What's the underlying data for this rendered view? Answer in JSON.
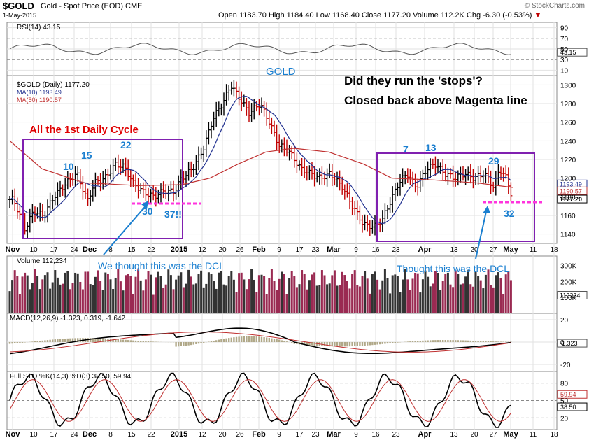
{
  "header": {
    "ticker": "$GOLD",
    "description": "Gold - Spot Price (EOD)",
    "exchange": "CME",
    "date": "1-May-2015",
    "ohlc_text": "Open 1183.70  High 1184.40  Low 1168.40  Close 1177.20  Volume 112.2K  Chg -6.30 (-0.53%)",
    "chg_icon": "down-triangle",
    "logo": "© StockCharts.com"
  },
  "panels": {
    "rsi": {
      "label": "RSI(14) 43.15",
      "value_tag": "43.15",
      "ticks": [
        "90",
        "70",
        "50",
        "30",
        "10"
      ]
    },
    "price": {
      "legend": [
        "$GOLD (Daily) 1177.20",
        "MA(10) 1193.49",
        "MA(50) 1190.57"
      ],
      "tags": [
        "1193.49",
        "1190.57",
        "1177.20"
      ],
      "ticks": [
        "1300",
        "1280",
        "1260",
        "1240",
        "1220",
        "1200",
        "1180",
        "1160",
        "1140"
      ]
    },
    "volume": {
      "label": "Volume 112,234",
      "tag": "112234",
      "ticks": [
        "300K",
        "200K",
        "100K"
      ]
    },
    "macd": {
      "label": "MACD(12,26,9) -1.323, 0.319, -1.642",
      "tag": "-1.323",
      "ticks": [
        "20",
        "0",
        "-20"
      ]
    },
    "sto": {
      "label": "Full STO %K(14,3) %D(3) 38.50, 59.94",
      "tags": [
        "59.94",
        "38.50"
      ],
      "ticks": [
        "80",
        "50",
        "20"
      ]
    }
  },
  "xaxis": {
    "labels": [
      "Nov",
      "10",
      "17",
      "24",
      "Dec",
      "8",
      "15",
      "22",
      "2015",
      "12",
      "20",
      "26",
      "Feb",
      "9",
      "17",
      "23",
      "Mar",
      "9",
      "16",
      "23",
      "Apr",
      "13",
      "20",
      "27",
      "May",
      "11",
      "18"
    ]
  },
  "annotations": {
    "gold": "GOLD",
    "headline1": "Did they run the 'stops'?",
    "headline2": "Closed back above Magenta line",
    "cycle": "All the 1st Daily Cycle",
    "n10": "10",
    "n15": "15",
    "n22": "22",
    "n30": "30",
    "n37": "37!!",
    "n7": "7",
    "n13": "13",
    "n29": "29",
    "n32": "32",
    "dcl1": "We thought this was the DCL",
    "dcl2": "Thought this was the DCL"
  },
  "colors": {
    "up": "#000000",
    "down": "#c00000",
    "ma10": "#1f2f8f",
    "ma50": "#c03030",
    "box": "#8020b0",
    "magenta": "#ff33dd",
    "note": "#1a7fd0",
    "red_text": "#e00000",
    "vol_up": "#333333",
    "vol_down": "#9a2a52"
  },
  "chart_data": {
    "type": "line",
    "title": "$GOLD (Daily)",
    "x": [
      "2014-11-03",
      "2014-11-17",
      "2014-12-01",
      "2014-12-15",
      "2015-01-02",
      "2015-01-20",
      "2015-02-02",
      "2015-02-17",
      "2015-03-02",
      "2015-03-16",
      "2015-04-01",
      "2015-04-13",
      "2015-04-27",
      "2015-05-01"
    ],
    "series": [
      {
        "name": "$GOLD (Daily)",
        "values": [
          1160,
          1190,
          1205,
          1200,
          1185,
          1290,
          1265,
          1220,
          1205,
          1155,
          1200,
          1205,
          1205,
          1177.2
        ]
      },
      {
        "name": "MA(10)",
        "values": [
          1170,
          1180,
          1195,
          1200,
          1190,
          1240,
          1275,
          1240,
          1210,
          1170,
          1175,
          1200,
          1200,
          1193.49
        ]
      },
      {
        "name": "MA(50)",
        "values": [
          1235,
          1205,
          1195,
          1195,
          1195,
          1205,
          1220,
          1230,
          1220,
          1200,
          1195,
          1195,
          1195,
          1190.57
        ]
      }
    ],
    "ylim": [
      1130,
      1310
    ]
  }
}
